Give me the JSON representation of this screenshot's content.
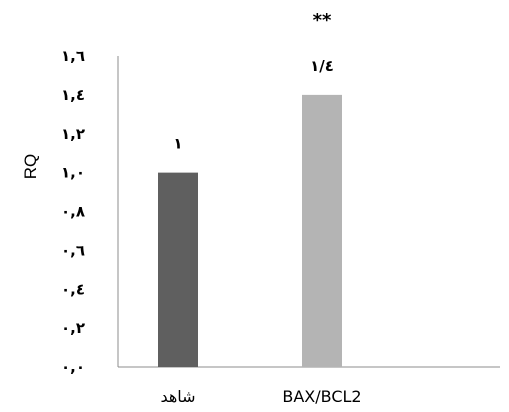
{
  "chart_data": {
    "type": "bar",
    "categories": [
      "شاهد",
      "BAX/BCL2"
    ],
    "values": [
      1.0,
      1.4
    ],
    "value_labels": [
      "۱",
      "۱/٤"
    ],
    "ylabel": "RQ",
    "ylim": [
      0,
      1.6
    ],
    "yticks": [
      0,
      0.2,
      0.4,
      0.6,
      0.8,
      1.0,
      1.2,
      1.4,
      1.6
    ],
    "ytick_labels": [
      "۰,۰",
      "۰,۲",
      "۰,٤",
      "۰,٦",
      "۰,۸",
      "۱,۰",
      "۱,۲",
      "۱,٤",
      "۱,٦"
    ],
    "annotations": [
      {
        "text": "**",
        "category": "BAX/BCL2"
      }
    ],
    "bar_colors": [
      "#5f5f5f",
      "#b4b4b4"
    ],
    "grid": false,
    "legend": "none"
  }
}
